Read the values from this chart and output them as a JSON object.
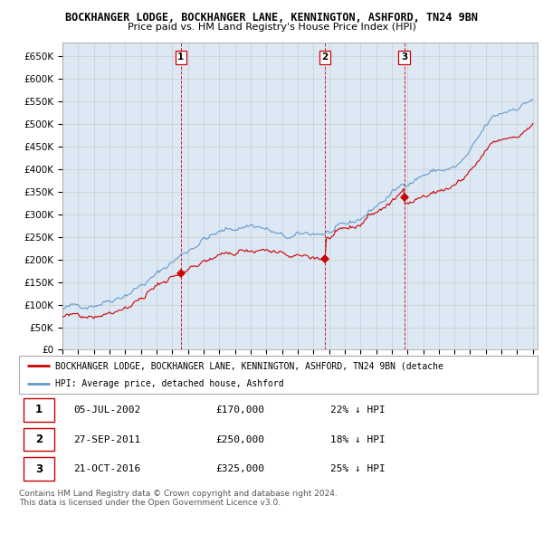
{
  "title_line1": "BOCKHANGER LODGE, BOCKHANGER LANE, KENNINGTON, ASHFORD, TN24 9BN",
  "title_line2": "Price paid vs. HM Land Registry's House Price Index (HPI)",
  "ylim": [
    0,
    680000
  ],
  "yticks": [
    0,
    50000,
    100000,
    150000,
    200000,
    250000,
    300000,
    350000,
    400000,
    450000,
    500000,
    550000,
    600000,
    650000
  ],
  "ytick_labels": [
    "£0",
    "£50K",
    "£100K",
    "£150K",
    "£200K",
    "£250K",
    "£300K",
    "£350K",
    "£400K",
    "£450K",
    "£500K",
    "£550K",
    "£600K",
    "£650K"
  ],
  "sale_points": [
    {
      "year": 2002.55,
      "price": 170000,
      "label": "1"
    },
    {
      "year": 2011.75,
      "price": 250000,
      "label": "2"
    },
    {
      "year": 2016.8,
      "price": 325000,
      "label": "3"
    }
  ],
  "sale_color": "#cc0000",
  "hpi_color": "#6699cc",
  "grid_color": "#cccccc",
  "bg_color": "#dce9f5",
  "legend_label_sale": "BOCKHANGER LODGE, BOCKHANGER LANE, KENNINGTON, ASHFORD, TN24 9BN (detache",
  "legend_label_hpi": "HPI: Average price, detached house, Ashford",
  "table_entries": [
    {
      "num": "1",
      "date": "05-JUL-2002",
      "price": "£170,000",
      "pct": "22% ↓ HPI"
    },
    {
      "num": "2",
      "date": "27-SEP-2011",
      "price": "£250,000",
      "pct": "18% ↓ HPI"
    },
    {
      "num": "3",
      "date": "21-OCT-2016",
      "price": "£325,000",
      "pct": "25% ↓ HPI"
    }
  ],
  "footer": "Contains HM Land Registry data © Crown copyright and database right 2024.\nThis data is licensed under the Open Government Licence v3.0."
}
